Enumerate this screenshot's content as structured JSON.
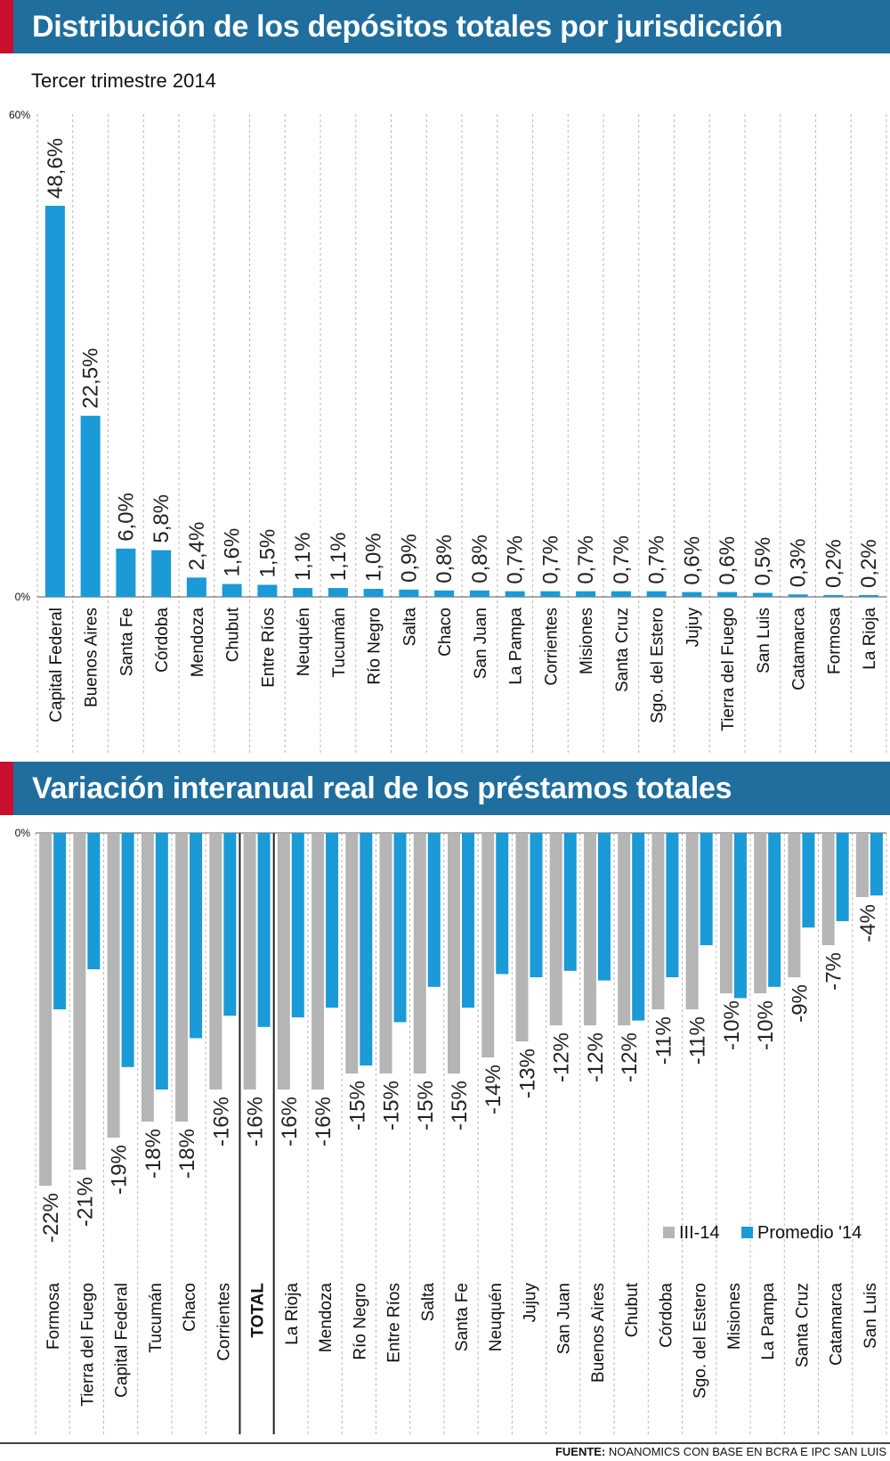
{
  "header1": {
    "title": "Distribución de los depósitos totales por jurisdicción"
  },
  "subtitle": "Tercer trimestre 2014",
  "header2": {
    "title": "Variación interanual real de los préstamos totales"
  },
  "footer": {
    "source_label": "FUENTE:",
    "source_text": "NOANOMICS CON BASE EN BCRA E IPC SAN LUIS"
  },
  "colors": {
    "blue": "#1a9ad6",
    "gray": "#b5b5b5",
    "banner": "#1f6e9e",
    "accent": "#c8102e"
  },
  "chart_data": [
    {
      "type": "bar",
      "title": "Distribución de los depósitos totales por jurisdicción",
      "subtitle": "Tercer trimestre 2014",
      "ylim": [
        0,
        60
      ],
      "yticks": [
        "0%",
        "60%"
      ],
      "categories": [
        "Capital Federal",
        "Buenos Aires",
        "Santa Fe",
        "Córdoba",
        "Mendoza",
        "Chubut",
        "Entre Ríos",
        "Neuquén",
        "Tucumán",
        "Río Negro",
        "Salta",
        "Chaco",
        "San Juan",
        "La Pampa",
        "Corrientes",
        "Misiones",
        "Santa Cruz",
        "Sgo. del Estero",
        "Jujuy",
        "Tierra del Fuego",
        "San Luis",
        "Catamarca",
        "Formosa",
        "La Rioja"
      ],
      "values": [
        48.6,
        22.5,
        6.0,
        5.8,
        2.4,
        1.6,
        1.5,
        1.1,
        1.1,
        1.0,
        0.9,
        0.8,
        0.8,
        0.7,
        0.7,
        0.7,
        0.7,
        0.7,
        0.6,
        0.6,
        0.5,
        0.3,
        0.2,
        0.2
      ],
      "labels": [
        "48,6%",
        "22,5%",
        "6,0%",
        "5,8%",
        "2,4%",
        "1,6%",
        "1,5%",
        "1,1%",
        "1,1%",
        "1,0%",
        "0,9%",
        "0,8%",
        "0,8%",
        "0,7%",
        "0,7%",
        "0,7%",
        "0,7%",
        "0,7%",
        "0,6%",
        "0,6%",
        "0,5%",
        "0,3%",
        "0,2%",
        "0,2%"
      ],
      "grid": true
    },
    {
      "type": "bar",
      "title": "Variación interanual real de los préstamos totales",
      "ylim": [
        -25,
        0
      ],
      "yticks": [
        "0%"
      ],
      "categories": [
        "Formosa",
        "Tierra del Fuego",
        "Capital Federal",
        "Tucumán",
        "Chaco",
        "Corrientes",
        "TOTAL",
        "La Rioja",
        "Mendoza",
        "Río Negro",
        "Entre Ríos",
        "Salta",
        "Santa Fe",
        "Neuquén",
        "Jujuy",
        "San Juan",
        "Buenos Aires",
        "Chubut",
        "Córdoba",
        "Sgo. del Estero",
        "Misiones",
        "La Pampa",
        "Santa Cruz",
        "Catamarca",
        "San Luis"
      ],
      "series": [
        {
          "name": "III-14",
          "values": [
            -22,
            -21,
            -19,
            -18,
            -18,
            -16,
            -16,
            -16,
            -16,
            -15,
            -15,
            -15,
            -15,
            -14,
            -13,
            -12,
            -12,
            -12,
            -11,
            -11,
            -10,
            -10,
            -9,
            -7,
            -4
          ]
        },
        {
          "name": "Promedio '14",
          "values": [
            -11,
            -8.5,
            -14.6,
            -16,
            -12.8,
            -11.4,
            -12.1,
            -11.5,
            -10.9,
            -14.5,
            -11.8,
            -9.6,
            -10.9,
            -8.8,
            -9,
            -8.6,
            -9.2,
            -11.7,
            -9,
            -7,
            -10.3,
            -9.6,
            -5.9,
            -5.5,
            -3.9
          ]
        }
      ],
      "labels": [
        "-22%",
        "-21%",
        "-19%",
        "-18%",
        "-18%",
        "-16%",
        "-16%",
        "-16%",
        "-16%",
        "-15%",
        "-15%",
        "-15%",
        "-15%",
        "-14%",
        "-13%",
        "-12%",
        "-12%",
        "-12%",
        "-11%",
        "-11%",
        "-10%",
        "-10%",
        "-9%",
        "-7%",
        "-4%"
      ],
      "legend": {
        "placement": "bottom-right"
      },
      "grid": true
    }
  ]
}
